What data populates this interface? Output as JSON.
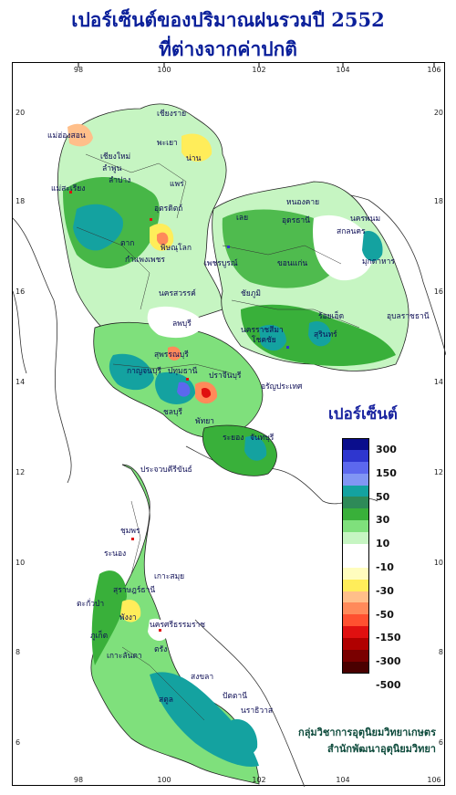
{
  "title_line1": "เปอร์เซ็นต์ของปริมาณฝนรวมปี  2552",
  "title_line2": "ที่ต่างจากค่าปกติ",
  "legend": {
    "title": "เปอร์เซ็นต์",
    "colors": [
      "#0a0e8c",
      "#2e36cf",
      "#5c68ee",
      "#8196f4",
      "#14a2a0",
      "#2e8a58",
      "#39b03a",
      "#7fe07c",
      "#c6f5c2",
      "#ffffff",
      "#ffffff",
      "#fffdbe",
      "#ffed5a",
      "#ffbf8a",
      "#ff8a5a",
      "#ff5030",
      "#e01010",
      "#b00000",
      "#7a0000",
      "#4a0000"
    ],
    "labels": [
      "300",
      "150",
      "50",
      "30",
      "10",
      "-10",
      "-30",
      "-50",
      "-150",
      "-300",
      "-500"
    ]
  },
  "axis": {
    "longitudes": [
      "98",
      "100",
      "102",
      "104",
      "106"
    ],
    "latitudes": [
      "20",
      "18",
      "16",
      "14",
      "12",
      "10",
      "8",
      "6"
    ]
  },
  "provinces": [
    "เชียงราย",
    "แม่ฮ่องสอน",
    "เชียงใหม่",
    "ลำพูน",
    "พะเยา",
    "น่าน",
    "แพร่",
    "ลำปาง",
    "แม่สะเรียง",
    "อุตรดิตถ์",
    "ตาก",
    "พิษณุโลก",
    "กำแพงเพชร",
    "เพชรบูรณ์",
    "หนองคาย",
    "อุดรธานี",
    "สกลนคร",
    "นครพนม",
    "เลย",
    "มุกดาหาร",
    "ขอนแก่น",
    "นครสวรรค์",
    "ชัยภูมิ",
    "ร้อยเอ็ด",
    "อุบลราชธานี",
    "ลพบุรี",
    "นครราชสีมา",
    "โชคชัย",
    "สุรินทร์",
    "สุพรรณบุรี",
    "กาญจนบุรี",
    "ปทุมธานี",
    "ปราจีนบุรี",
    "อรัญประเทศ",
    "ชลบุรี",
    "พัทยา",
    "ระยอง",
    "จันทบุรี",
    "ประจวบคีรีขันธ์",
    "ชุมพร",
    "ระนอง",
    "สุราษฎร์ธานี",
    "เกาะสมุย",
    "ตะกั่วป่า",
    "พังงา",
    "ภูเก็ต",
    "นครศรีธรรมราช",
    "ตรัง",
    "สงขลา",
    "ปัตตานี",
    "นราธิวาส",
    "สตูล",
    "เกาะลันตา"
  ],
  "credits": {
    "line1": "กลุ่มวิชาการอุตุนิยมวิทยาเกษตร",
    "line2": "สำนักพัฒนาอุตุนิยมวิทยา"
  }
}
